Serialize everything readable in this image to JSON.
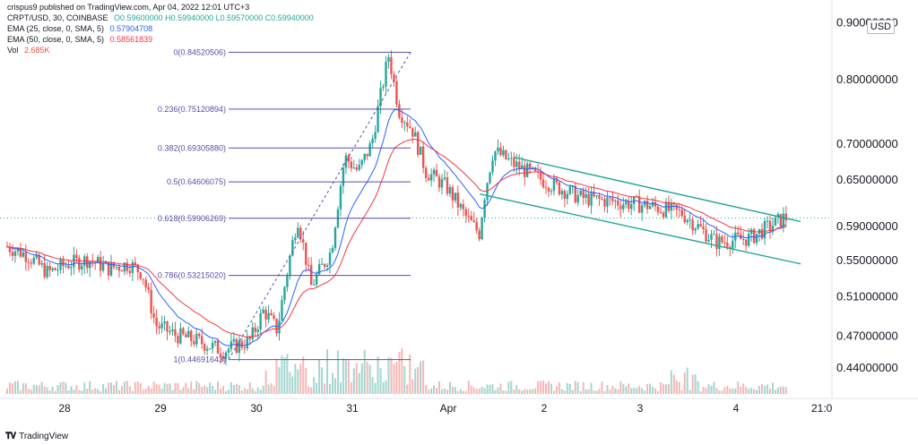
{
  "header": {
    "published": "crispus9 published on TradingView.com, Apr 04, 2022 12:01 UTC+3",
    "symbol_line": "CRPT/USD, 30, COINBASE",
    "ohlc": "O0.59600000  H0.59940000  L0.59570000  C0.59940000",
    "ema25_label": "EMA (25, close, 0, SMA, 5)",
    "ema25_value": "0.57904708",
    "ema50_label": "EMA (50, close, 0, SMA, 5)",
    "ema50_value": "0.58561839",
    "vol_label": "Vol",
    "vol_value": "2.685K"
  },
  "currency": "USD",
  "footer": {
    "brand": "TradingView"
  },
  "colors": {
    "up": "#26a69a",
    "down": "#ef5350",
    "ema25": "#2962ff",
    "ema50": "#f23645",
    "fib": "#5b4da8",
    "channel": "#26a69a"
  },
  "chart_data": {
    "type": "candlestick",
    "y_ticks": [
      "0.90000000",
      "0.80000000",
      "0.70000000",
      "0.65000000",
      "0.59000000",
      "0.55000000",
      "0.51000000",
      "0.47000000",
      "0.44000000"
    ],
    "x_ticks": [
      "28",
      "29",
      "30",
      "31",
      "Apr",
      "2",
      "3",
      "4",
      "21:0"
    ],
    "current_price": 0.5994,
    "fib_levels": [
      {
        "label": "0(0.84520506)",
        "value": 0.84520506
      },
      {
        "label": "0.236(0.75120894)",
        "value": 0.75120894
      },
      {
        "label": "0.382(0.69305880)",
        "value": 0.6930588
      },
      {
        "label": "0.5(0.64606075)",
        "value": 0.64606075
      },
      {
        "label": "0.618(0.59906269)",
        "value": 0.59906269
      },
      {
        "label": "0.786(0.53215020)",
        "value": 0.5321502
      },
      {
        "label": "1(0.44691643)",
        "value": 0.44691643
      }
    ],
    "close_path": [
      [
        0,
        0.565
      ],
      [
        0.3,
        0.555
      ],
      [
        0.6,
        0.535
      ],
      [
        0.9,
        0.545
      ],
      [
        1.2,
        0.55
      ],
      [
        1.5,
        0.54
      ],
      [
        1.8,
        0.545
      ],
      [
        2.0,
        0.535
      ],
      [
        2.2,
        0.48
      ],
      [
        2.5,
        0.47
      ],
      [
        2.8,
        0.465
      ],
      [
        3.0,
        0.46
      ],
      [
        3.2,
        0.455
      ],
      [
        3.4,
        0.46
      ],
      [
        3.6,
        0.465
      ],
      [
        3.8,
        0.495
      ],
      [
        4.0,
        0.475
      ],
      [
        4.3,
        0.6
      ],
      [
        4.5,
        0.52
      ],
      [
        4.8,
        0.56
      ],
      [
        5.0,
        0.68
      ],
      [
        5.2,
        0.66
      ],
      [
        5.4,
        0.7
      ],
      [
        5.65,
        0.84
      ],
      [
        5.8,
        0.75
      ],
      [
        6.0,
        0.72
      ],
      [
        6.2,
        0.66
      ],
      [
        6.5,
        0.64
      ],
      [
        6.8,
        0.6
      ],
      [
        7.0,
        0.58
      ],
      [
        7.05,
        0.62
      ],
      [
        7.2,
        0.69
      ],
      [
        7.5,
        0.67
      ],
      [
        8.0,
        0.645
      ],
      [
        8.5,
        0.625
      ],
      [
        9.0,
        0.62
      ],
      [
        9.5,
        0.615
      ],
      [
        10.0,
        0.605
      ],
      [
        10.5,
        0.57
      ],
      [
        11.0,
        0.575
      ],
      [
        11.5,
        0.5994
      ]
    ],
    "channel_upper": [
      [
        7.5,
        0.68
      ],
      [
        11.75,
        0.595
      ]
    ],
    "channel_lower": [
      [
        7.0,
        0.63
      ],
      [
        11.75,
        0.545
      ]
    ]
  }
}
